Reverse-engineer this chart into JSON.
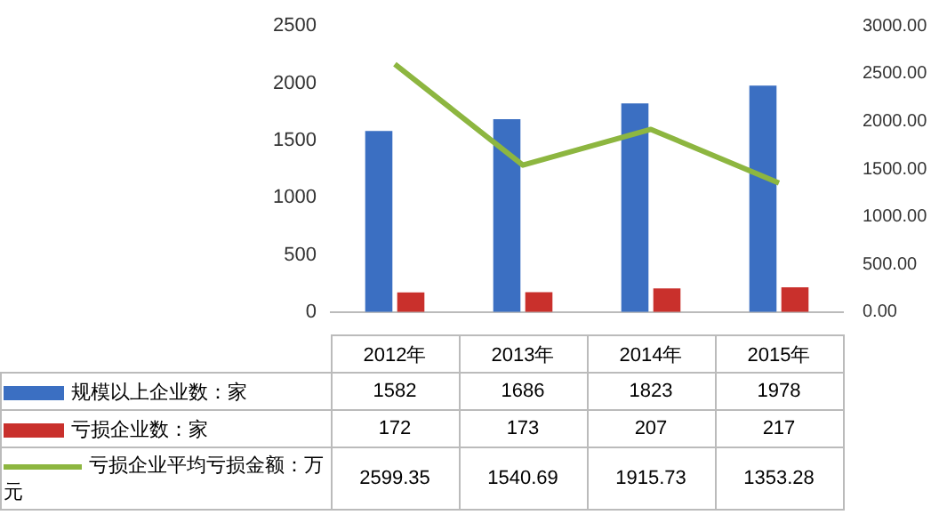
{
  "chart_data": {
    "type": "bar",
    "categories": [
      "2012年",
      "2013年",
      "2014年",
      "2015年"
    ],
    "series": [
      {
        "name": "规模以上企业数：家",
        "color": "#3b6fc2",
        "values": [
          1582,
          1686,
          1823,
          1978
        ]
      },
      {
        "name": "亏损企业数：家",
        "color": "#c9302c",
        "values": [
          172,
          173,
          207,
          217
        ]
      },
      {
        "name": "亏损企业平均亏损金额：万元",
        "color": "#8db640",
        "type": "line",
        "axis": "y2",
        "values": [
          2599.35,
          1540.69,
          1915.73,
          1353.28
        ]
      }
    ],
    "ylim": [
      0,
      2500
    ],
    "yticks": [
      0,
      500,
      1000,
      1500,
      2000,
      2500
    ],
    "y2lim": [
      0,
      3000
    ],
    "y2ticks": [
      {
        "value": 0,
        "label": "0.00"
      },
      {
        "value": 500,
        "label": "500.00"
      },
      {
        "value": 1000,
        "label": "1000.00"
      },
      {
        "value": 1500,
        "label": "1500.00"
      },
      {
        "value": 2000,
        "label": "2000.00"
      },
      {
        "value": 2500,
        "label": "2500.00"
      },
      {
        "value": 3000,
        "label": "3000.00"
      }
    ],
    "data_labels": true,
    "legend": "bottom",
    "marker": "none",
    "grid": false
  }
}
